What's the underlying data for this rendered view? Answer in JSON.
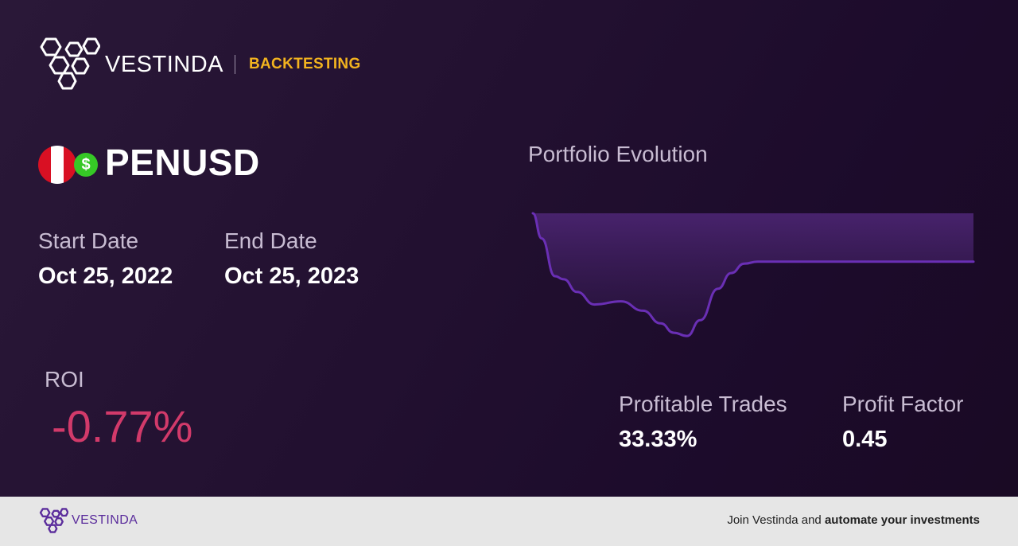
{
  "header": {
    "brand": "VESTINDA",
    "product": "BACKTESTING"
  },
  "asset": {
    "symbol": "PENUSD",
    "flag_icon": "peru-flag-icon",
    "currency_icon": "dollar-coin-icon",
    "currency_symbol": "$"
  },
  "dates": {
    "start_label": "Start Date",
    "start_value": "Oct 25, 2022",
    "end_label": "End Date",
    "end_value": "Oct 25, 2023"
  },
  "roi": {
    "label": "ROI",
    "value": "-0.77%"
  },
  "portfolio": {
    "title": "Portfolio Evolution"
  },
  "stats": {
    "profitable_trades_label": "Profitable Trades",
    "profitable_trades_value": "33.33%",
    "profit_factor_label": "Profit Factor",
    "profit_factor_value": "0.45"
  },
  "footer": {
    "brand": "VESTINDA",
    "cta_prefix": "Join Vestinda and ",
    "cta_bold": "automate your investments"
  },
  "colors": {
    "accent_yellow": "#f2b31f",
    "roi_negative": "#d23a6a",
    "line_purple": "#6a2fb5",
    "background": "#221030"
  },
  "chart_data": {
    "type": "area",
    "title": "Portfolio Evolution",
    "xlabel": "",
    "ylabel": "",
    "x": [
      0,
      2,
      5,
      7,
      10,
      14,
      20,
      25,
      29,
      32,
      35,
      38,
      42,
      45,
      48,
      51,
      54,
      57,
      60,
      70,
      80,
      90,
      100
    ],
    "series": [
      {
        "values": [
          100,
          99.6,
          99.0,
          98.95,
          98.75,
          98.55,
          98.6,
          98.45,
          98.25,
          98.1,
          98.05,
          98.3,
          98.8,
          99.05,
          99.2,
          99.23,
          99.23,
          99.23,
          99.23,
          99.23,
          99.23,
          99.23,
          99.23
        ]
      }
    ],
    "ylim": [
      98.0,
      100.0
    ],
    "grid": false,
    "legend": "none"
  }
}
